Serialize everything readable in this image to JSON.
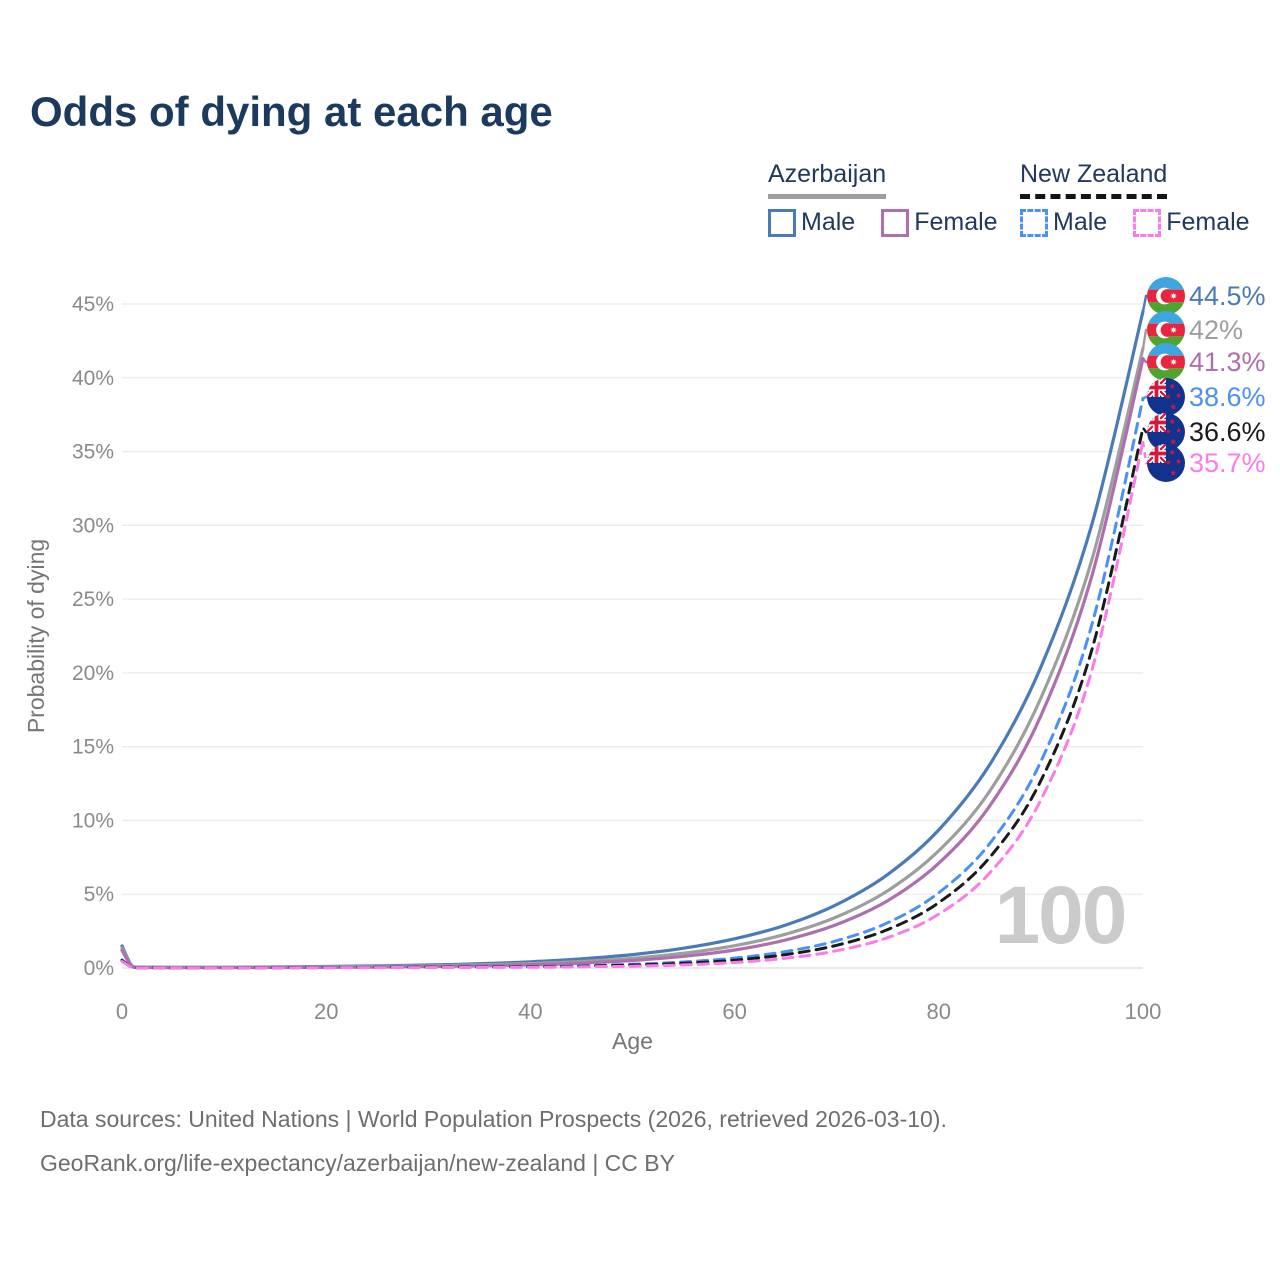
{
  "title": "Odds of dying at each age",
  "watermark": "100",
  "legend": {
    "groups": [
      {
        "country": "Azerbaijan",
        "line_style": "solid",
        "underline_color": "#9e9e9e",
        "items": [
          {
            "label": "Male",
            "color": "#4a7bb7"
          },
          {
            "label": "Female",
            "color": "#ad6fad"
          }
        ]
      },
      {
        "country": "New Zealand",
        "line_style": "dashed",
        "underline_color": "#141414",
        "items": [
          {
            "label": "Male",
            "color": "#4a90f5"
          },
          {
            "label": "Female",
            "color": "#fb7ce8"
          }
        ]
      }
    ]
  },
  "chart_data": {
    "type": "line",
    "title": "Odds of dying at each age",
    "xlabel": "Age",
    "ylabel": "Probability of dying",
    "xlim": [
      0,
      100
    ],
    "ylim": [
      0,
      45
    ],
    "xticks": [
      0,
      20,
      40,
      60,
      80,
      100
    ],
    "yticks": [
      0,
      5,
      10,
      15,
      20,
      25,
      30,
      35,
      40,
      45
    ],
    "ytick_suffix": "%",
    "grid": "horizontal",
    "legend_position": "top-right",
    "x": [
      0,
      1,
      2,
      5,
      10,
      15,
      20,
      25,
      30,
      35,
      40,
      45,
      50,
      55,
      60,
      65,
      70,
      75,
      80,
      85,
      90,
      95,
      100
    ],
    "series": [
      {
        "name": "Azerbaijan Male",
        "flag": "az",
        "color": "#4a7bb7",
        "dashed": false,
        "end_label": "44.5%",
        "end_value": 44.5,
        "values": [
          1.5,
          0.12,
          0.06,
          0.05,
          0.05,
          0.07,
          0.1,
          0.14,
          0.2,
          0.29,
          0.42,
          0.62,
          0.91,
          1.34,
          1.98,
          2.91,
          4.3,
          6.34,
          9.36,
          13.8,
          20.4,
          30.1,
          44.5
        ]
      },
      {
        "name": "Azerbaijan",
        "flag": "az",
        "color": "#9e9e9e",
        "dashed": false,
        "end_label": "42%",
        "end_value": 42,
        "values": [
          1.35,
          0.1,
          0.05,
          0.04,
          0.04,
          0.05,
          0.08,
          0.11,
          0.14,
          0.21,
          0.3,
          0.44,
          0.66,
          1.0,
          1.51,
          2.29,
          3.46,
          5.24,
          7.95,
          12.0,
          18.3,
          27.7,
          42.0
        ]
      },
      {
        "name": "Azerbaijan Female",
        "flag": "az",
        "color": "#ad6fad",
        "dashed": false,
        "end_label": "41.3%",
        "end_value": 41.3,
        "values": [
          1.2,
          0.09,
          0.04,
          0.03,
          0.03,
          0.04,
          0.05,
          0.07,
          0.1,
          0.15,
          0.21,
          0.33,
          0.51,
          0.79,
          1.22,
          1.9,
          2.95,
          4.57,
          7.1,
          11.0,
          17.1,
          26.6,
          41.3
        ]
      },
      {
        "name": "New Zealand Male",
        "flag": "nz",
        "color": "#4a90f5",
        "dashed": true,
        "end_label": "38.6%",
        "end_value": 38.6,
        "values": [
          0.55,
          0.05,
          0.02,
          0.01,
          0.01,
          0.02,
          0.04,
          0.05,
          0.06,
          0.07,
          0.09,
          0.15,
          0.25,
          0.41,
          0.67,
          1.11,
          1.85,
          3.07,
          5.1,
          8.45,
          14.0,
          23.3,
          38.6
        ]
      },
      {
        "name": "New Zealand",
        "flag": "nz",
        "color": "#1a1a1a",
        "dashed": true,
        "end_label": "36.6%",
        "end_value": 36.6,
        "values": [
          0.5,
          0.04,
          0.02,
          0.01,
          0.01,
          0.02,
          0.03,
          0.04,
          0.05,
          0.06,
          0.08,
          0.12,
          0.2,
          0.32,
          0.53,
          0.91,
          1.54,
          2.61,
          4.43,
          7.51,
          12.7,
          21.6,
          36.6
        ]
      },
      {
        "name": "New Zealand Female",
        "flag": "nz",
        "color": "#fb7ce8",
        "dashed": true,
        "end_label": "35.7%",
        "end_value": 35.7,
        "values": [
          0.45,
          0.04,
          0.01,
          0.01,
          0.01,
          0.01,
          0.02,
          0.03,
          0.03,
          0.04,
          0.05,
          0.08,
          0.12,
          0.21,
          0.37,
          0.66,
          1.17,
          2.06,
          3.65,
          6.45,
          11.4,
          20.2,
          35.7
        ]
      }
    ]
  },
  "footer": {
    "line1": "Data sources: United Nations | World Population Prospects (2026, retrieved 2026-03-10).",
    "line2": "GeoRank.org/life-expectancy/azerbaijan/new-zealand | CC BY"
  },
  "colors": {
    "title_text": "#1b3a5e",
    "legend_text": "#22395c",
    "axis_text": "#8a8a8a",
    "axis_title_text": "#767676",
    "gridline": "#ebebeb",
    "zero_line": "#dcdcdc",
    "watermark": "#cbcbcb",
    "footer_text": "#6e6e6e",
    "az_flag_blue": "#3da5e0",
    "az_flag_red": "#e8253e",
    "az_flag_green": "#4fa32f",
    "nz_flag_blue": "#11338e",
    "nz_flag_red": "#d6163a"
  }
}
